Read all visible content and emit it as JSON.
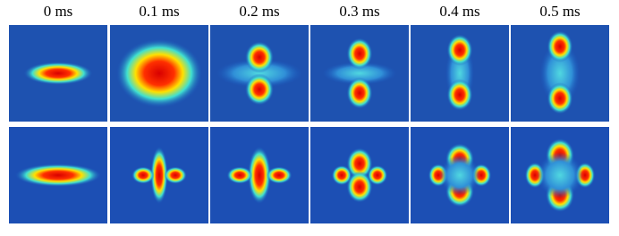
{
  "figure": {
    "labels": [
      "0 ms",
      "0.1 ms",
      "0.2 ms",
      "0.3 ms",
      "0.4 ms",
      "0.5 ms"
    ]
  }
}
